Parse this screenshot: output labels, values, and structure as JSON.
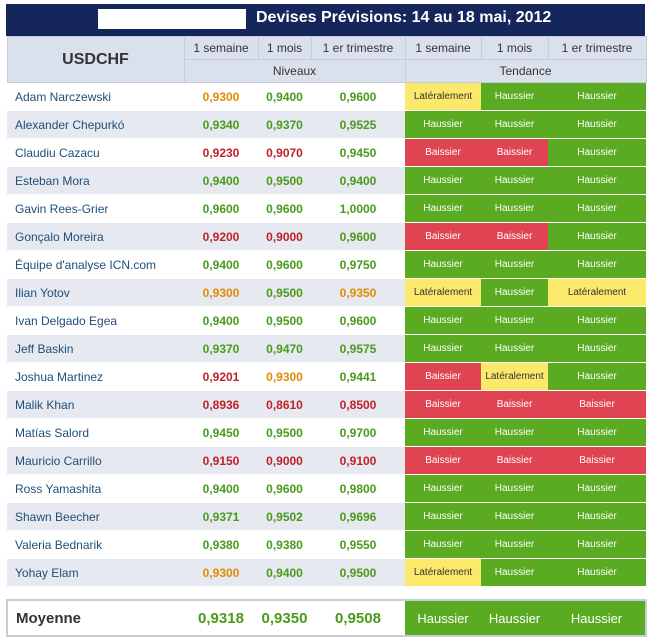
{
  "title": "Devises Prévisions: 14 au 18 mai, 2012",
  "header": {
    "pair": "USDCHF",
    "columns": [
      "1 semaine",
      "1 mois",
      "1 er trimestre",
      "1 semaine",
      "1 mois",
      "1 er trimestre"
    ],
    "group_levels": "Niveaux",
    "group_trend": "Tendance"
  },
  "colors": {
    "green": "#5aab22",
    "red": "#e04452",
    "yellow": "#fbe96b",
    "title_bg": "#15265a"
  },
  "rows": [
    {
      "name": "Adam Narczewski",
      "levels": [
        "0,9300",
        "0,9400",
        "0,9600"
      ],
      "level_colors": [
        "orange",
        "green",
        "green"
      ],
      "trends": [
        "Latéralement",
        "Haussier",
        "Haussier"
      ],
      "trend_colors": [
        "yellow",
        "green",
        "green"
      ]
    },
    {
      "name": "Alexander Chepurkó",
      "levels": [
        "0,9340",
        "0,9370",
        "0,9525"
      ],
      "level_colors": [
        "green",
        "green",
        "green"
      ],
      "trends": [
        "Haussier",
        "Haussier",
        "Haussier"
      ],
      "trend_colors": [
        "green",
        "green",
        "green"
      ]
    },
    {
      "name": "Claudiu Cazacu",
      "levels": [
        "0,9230",
        "0,9070",
        "0,9450"
      ],
      "level_colors": [
        "red",
        "red",
        "green"
      ],
      "trends": [
        "Baissier",
        "Baissier",
        "Haussier"
      ],
      "trend_colors": [
        "red",
        "red",
        "green"
      ]
    },
    {
      "name": "Esteban Mora",
      "levels": [
        "0,9400",
        "0,9500",
        "0,9400"
      ],
      "level_colors": [
        "green",
        "green",
        "green"
      ],
      "trends": [
        "Haussier",
        "Haussier",
        "Haussier"
      ],
      "trend_colors": [
        "green",
        "green",
        "green"
      ]
    },
    {
      "name": "Gavin Rees-Grier",
      "levels": [
        "0,9600",
        "0,9600",
        "1,0000"
      ],
      "level_colors": [
        "green",
        "green",
        "green"
      ],
      "trends": [
        "Haussier",
        "Haussier",
        "Haussier"
      ],
      "trend_colors": [
        "green",
        "green",
        "green"
      ]
    },
    {
      "name": "Gonçalo Moreira",
      "levels": [
        "0,9200",
        "0,9000",
        "0,9600"
      ],
      "level_colors": [
        "red",
        "red",
        "green"
      ],
      "trends": [
        "Baissier",
        "Baissier",
        "Haussier"
      ],
      "trend_colors": [
        "red",
        "red",
        "green"
      ]
    },
    {
      "name": "Équipe d'analyse ICN.com",
      "levels": [
        "0,9400",
        "0,9600",
        "0,9750"
      ],
      "level_colors": [
        "green",
        "green",
        "green"
      ],
      "trends": [
        "Haussier",
        "Haussier",
        "Haussier"
      ],
      "trend_colors": [
        "green",
        "green",
        "green"
      ]
    },
    {
      "name": "Ilian Yotov",
      "levels": [
        "0,9300",
        "0,9500",
        "0,9350"
      ],
      "level_colors": [
        "orange",
        "green",
        "orange"
      ],
      "trends": [
        "Latéralement",
        "Haussier",
        "Latéralement"
      ],
      "trend_colors": [
        "yellow",
        "green",
        "yellow"
      ]
    },
    {
      "name": "Ivan Delgado Egea",
      "levels": [
        "0,9400",
        "0,9500",
        "0,9600"
      ],
      "level_colors": [
        "green",
        "green",
        "green"
      ],
      "trends": [
        "Haussier",
        "Haussier",
        "Haussier"
      ],
      "trend_colors": [
        "green",
        "green",
        "green"
      ]
    },
    {
      "name": "Jeff Baskin",
      "levels": [
        "0,9370",
        "0,9470",
        "0,9575"
      ],
      "level_colors": [
        "green",
        "green",
        "green"
      ],
      "trends": [
        "Haussier",
        "Haussier",
        "Haussier"
      ],
      "trend_colors": [
        "green",
        "green",
        "green"
      ]
    },
    {
      "name": "Joshua Martinez",
      "levels": [
        "0,9201",
        "0,9300",
        "0,9441"
      ],
      "level_colors": [
        "red",
        "orange",
        "green"
      ],
      "trends": [
        "Baissier",
        "Latéralement",
        "Haussier"
      ],
      "trend_colors": [
        "red",
        "yellow",
        "green"
      ]
    },
    {
      "name": "Malik Khan",
      "levels": [
        "0,8936",
        "0,8610",
        "0,8500"
      ],
      "level_colors": [
        "red",
        "red",
        "red"
      ],
      "trends": [
        "Baissier",
        "Baissier",
        "Baissier"
      ],
      "trend_colors": [
        "red",
        "red",
        "red"
      ]
    },
    {
      "name": "Matías Salord",
      "levels": [
        "0,9450",
        "0,9500",
        "0,9700"
      ],
      "level_colors": [
        "green",
        "green",
        "green"
      ],
      "trends": [
        "Haussier",
        "Haussier",
        "Haussier"
      ],
      "trend_colors": [
        "green",
        "green",
        "green"
      ]
    },
    {
      "name": "Mauricio Carrillo",
      "levels": [
        "0,9150",
        "0,9000",
        "0,9100"
      ],
      "level_colors": [
        "red",
        "red",
        "red"
      ],
      "trends": [
        "Baissier",
        "Baissier",
        "Baissier"
      ],
      "trend_colors": [
        "red",
        "red",
        "red"
      ]
    },
    {
      "name": "Ross Yamashita",
      "levels": [
        "0,9400",
        "0,9600",
        "0,9800"
      ],
      "level_colors": [
        "green",
        "green",
        "green"
      ],
      "trends": [
        "Haussier",
        "Haussier",
        "Haussier"
      ],
      "trend_colors": [
        "green",
        "green",
        "green"
      ]
    },
    {
      "name": "Shawn Beecher",
      "levels": [
        "0,9371",
        "0,9502",
        "0,9696"
      ],
      "level_colors": [
        "green",
        "green",
        "green"
      ],
      "trends": [
        "Haussier",
        "Haussier",
        "Haussier"
      ],
      "trend_colors": [
        "green",
        "green",
        "green"
      ]
    },
    {
      "name": "Valeria Bednarik",
      "levels": [
        "0,9380",
        "0,9380",
        "0,9550"
      ],
      "level_colors": [
        "green",
        "green",
        "green"
      ],
      "trends": [
        "Haussier",
        "Haussier",
        "Haussier"
      ],
      "trend_colors": [
        "green",
        "green",
        "green"
      ]
    },
    {
      "name": "Yohay Elam",
      "levels": [
        "0,9300",
        "0,9400",
        "0,9500"
      ],
      "level_colors": [
        "orange",
        "green",
        "green"
      ],
      "trends": [
        "Latéralement",
        "Haussier",
        "Haussier"
      ],
      "trend_colors": [
        "yellow",
        "green",
        "green"
      ]
    }
  ],
  "average": {
    "label": "Moyenne",
    "levels": [
      "0,9318",
      "0,9350",
      "0,9508"
    ],
    "trends": [
      "Haussier",
      "Haussier",
      "Haussier"
    ]
  }
}
